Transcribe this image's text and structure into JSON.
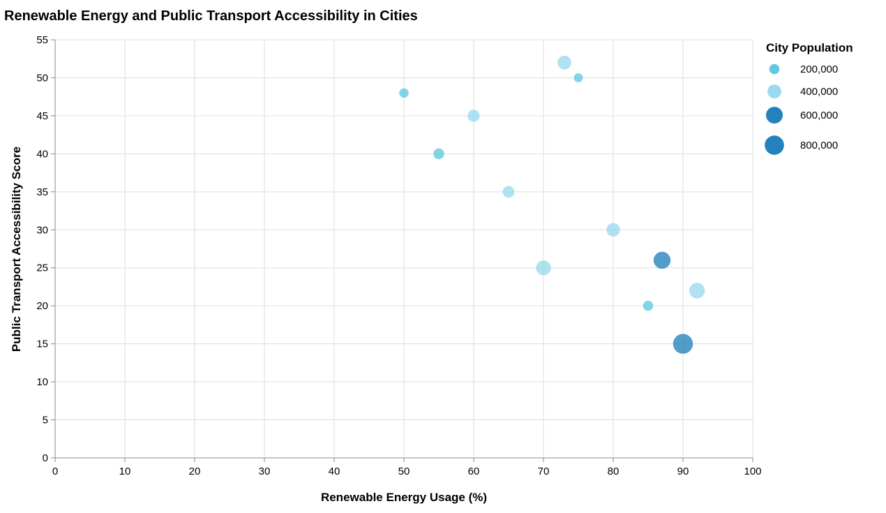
{
  "chart_data": {
    "type": "scatter",
    "title": "Renewable Energy and Public Transport Accessibility in Cities",
    "xlabel": "Renewable Energy Usage (%)",
    "ylabel": "Public Transport Accessibility Score",
    "xlim": [
      0,
      100
    ],
    "ylim": [
      0,
      55
    ],
    "x_ticks": [
      0,
      10,
      20,
      30,
      40,
      50,
      60,
      70,
      80,
      90,
      100
    ],
    "y_ticks": [
      0,
      5,
      10,
      15,
      20,
      25,
      30,
      35,
      40,
      45,
      50,
      55
    ],
    "grid": true,
    "legend": {
      "title": "City Population",
      "placement": "right",
      "entries": [
        {
          "label": "200,000",
          "value": 200000
        },
        {
          "label": "400,000",
          "value": 400000
        },
        {
          "label": "600,000",
          "value": 600000
        },
        {
          "label": "800,000",
          "value": 800000
        }
      ]
    },
    "points": [
      {
        "x": 73,
        "y": 52,
        "population": 400000
      },
      {
        "x": 75,
        "y": 50,
        "population": 150000
      },
      {
        "x": 50,
        "y": 48,
        "population": 170000
      },
      {
        "x": 60,
        "y": 45,
        "population": 300000
      },
      {
        "x": 55,
        "y": 40,
        "population": 230000
      },
      {
        "x": 65,
        "y": 35,
        "population": 280000
      },
      {
        "x": 80,
        "y": 30,
        "population": 380000
      },
      {
        "x": 87,
        "y": 26,
        "population": 620000
      },
      {
        "x": 70,
        "y": 25,
        "population": 470000
      },
      {
        "x": 92,
        "y": 22,
        "population": 520000
      },
      {
        "x": 85,
        "y": 20,
        "population": 200000
      },
      {
        "x": 90,
        "y": 15,
        "population": 850000
      }
    ]
  },
  "colors": {
    "low": "#4cc3dc",
    "mid": "#8ed6ec",
    "high": "#0b74b5"
  }
}
